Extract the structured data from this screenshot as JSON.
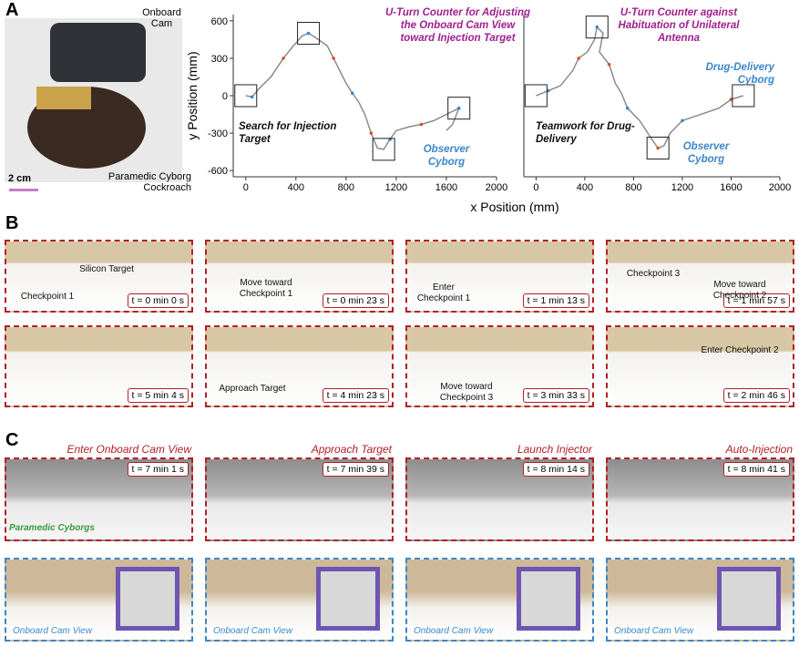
{
  "panel_a": {
    "label": "A",
    "onboard_cam": "Onboard Cam",
    "cockroach": "Paramedic Cyborg Cockroach",
    "scale": "2 cm"
  },
  "chart_data": [
    {
      "type": "line",
      "color": "#8c8c8c",
      "xlabel": "x Position (mm)",
      "ylabel": "y Position (mm)",
      "x": [
        0,
        50,
        100,
        200,
        300,
        380,
        450,
        500,
        550,
        650,
        700,
        750,
        800,
        850,
        900,
        950,
        1000,
        1050,
        1100,
        1150,
        1200,
        1300,
        1400,
        1500,
        1600,
        1700,
        1650,
        1600
      ],
      "values": [
        0,
        -10,
        50,
        150,
        300,
        400,
        480,
        500,
        470,
        400,
        300,
        200,
        100,
        20,
        -50,
        -150,
        -300,
        -420,
        -430,
        -350,
        -280,
        -250,
        -230,
        -200,
        -150,
        -100,
        -230,
        -280
      ],
      "xlim": [
        -100,
        2000
      ],
      "ylim": [
        -650,
        650
      ],
      "xticks": [
        0,
        400,
        800,
        1200,
        1600,
        2000
      ],
      "yticks": [
        -600,
        -300,
        0,
        300,
        600
      ],
      "annotations": [
        "U-Turn Counter for Adjusting the Onboard Cam View toward Injection Target",
        "Search for Injection Target",
        "Observer Cyborg"
      ]
    },
    {
      "type": "line",
      "color": "#8c8c8c",
      "x": [
        0,
        100,
        200,
        300,
        350,
        420,
        480,
        500,
        550,
        520,
        600,
        650,
        700,
        750,
        850,
        950,
        1000,
        1050,
        1100,
        1200,
        1350,
        1500,
        1600,
        1700
      ],
      "values": [
        0,
        40,
        80,
        200,
        300,
        350,
        450,
        550,
        500,
        350,
        250,
        100,
        20,
        -100,
        -200,
        -350,
        -420,
        -400,
        -300,
        -200,
        -150,
        -100,
        -30,
        0
      ],
      "xlim": [
        -100,
        2000
      ],
      "ylim": [
        -650,
        650
      ],
      "xticks": [
        0,
        400,
        800,
        1200,
        1600,
        2000
      ],
      "annotations": [
        "U-Turn Counter against Habituation of Unilateral Antenna",
        "Teamwork for Drug-Delivery",
        "Drug-Delivery Cyborg",
        "Observer Cyborg"
      ]
    }
  ],
  "panel_b": {
    "label": "B",
    "frames": [
      {
        "time": "t = 0 min 0 s",
        "notes": [
          "Silicon Target",
          "Checkpoint 1"
        ]
      },
      {
        "time": "t = 0 min 23 s",
        "notes": [
          "Move toward Checkpoint 1"
        ]
      },
      {
        "time": "t = 1 min 13 s",
        "notes": [
          "Enter Checkpoint 1"
        ]
      },
      {
        "time": "t = 1 min 57 s",
        "notes": [
          "Checkpoint 3",
          "Move toward Checkpoint 2"
        ]
      },
      {
        "time": "t = 2 min 46 s",
        "notes": [
          "Enter Checkpoint 2"
        ]
      },
      {
        "time": "t = 3 min 33 s",
        "notes": [
          "Move toward Checkpoint 3"
        ]
      },
      {
        "time": "t = 4 min 23 s",
        "notes": [
          "Approach Target"
        ]
      },
      {
        "time": "t = 5 min 4 s",
        "notes": []
      }
    ]
  },
  "panel_c": {
    "label": "C",
    "cyborgs": "Paramedic Cyborgs",
    "columns": [
      {
        "title": "Enter Onboard Cam View",
        "time": "t = 7 min 1 s",
        "view": "Onboard Cam View"
      },
      {
        "title": "Approach Target",
        "time": "t = 7 min 39 s",
        "view": "Onboard Cam View"
      },
      {
        "title": "Launch Injector",
        "time": "t = 8 min 14 s",
        "view": "Onboard Cam View"
      },
      {
        "title": "Auto-Injection",
        "time": "t = 8 min 41 s",
        "view": "Onboard Cam View"
      }
    ]
  }
}
